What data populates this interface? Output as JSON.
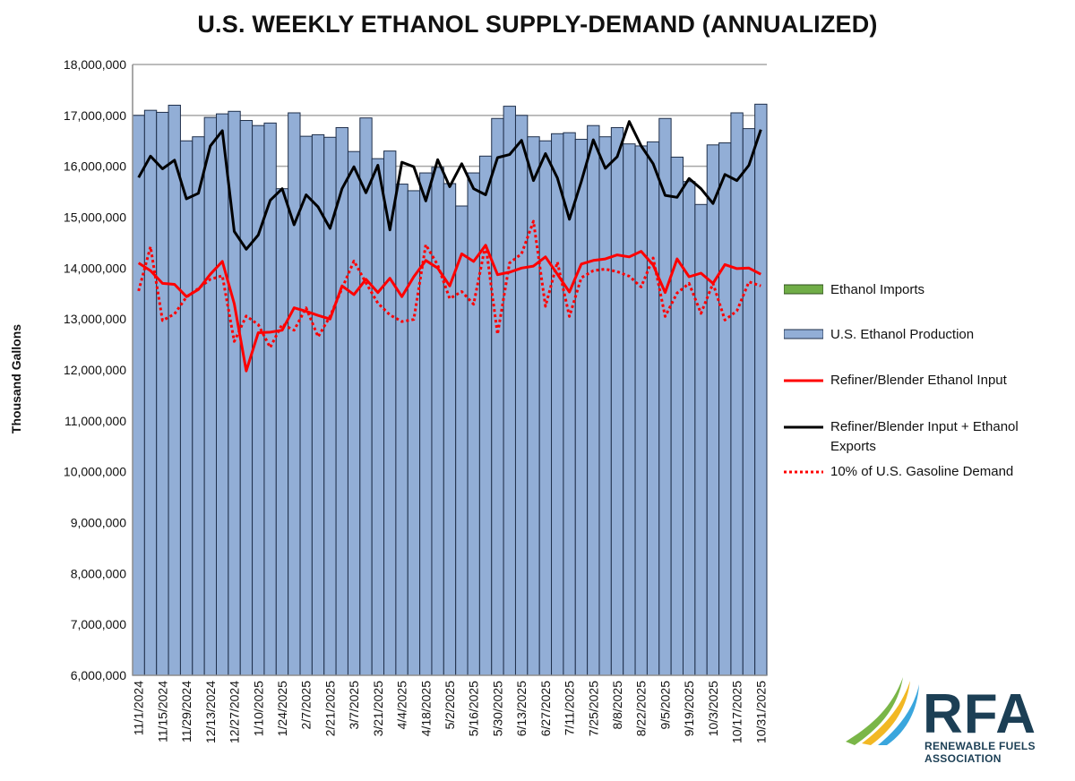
{
  "chart_data": {
    "type": "bar",
    "title": "U.S. WEEKLY ETHANOL SUPPLY-DEMAND (ANNUALIZED)",
    "ylabel": "Thousand Gallons",
    "xlabel": "",
    "ylim": [
      6000000,
      18000000
    ],
    "yticks": [
      "6,000,000",
      "7,000,000",
      "8,000,000",
      "9,000,000",
      "10,000,000",
      "11,000,000",
      "12,000,000",
      "13,000,000",
      "14,000,000",
      "15,000,000",
      "16,000,000",
      "17,000,000",
      "18,000,000"
    ],
    "ytick_values": [
      6000000,
      7000000,
      8000000,
      9000000,
      10000000,
      11000000,
      12000000,
      13000000,
      14000000,
      15000000,
      16000000,
      17000000,
      18000000
    ],
    "xtick_labels": [
      "11/1/2024",
      "11/15/2024",
      "11/29/2024",
      "12/13/2024",
      "12/27/2024",
      "1/10/2025",
      "1/24/2025",
      "2/7/2025",
      "2/21/2025",
      "3/7/2025",
      "3/21/2025",
      "4/4/2025",
      "4/18/2025",
      "5/2/2025",
      "5/16/2025",
      "5/30/2025",
      "6/13/2025",
      "6/27/2025",
      "7/11/2025",
      "7/25/2025",
      "8/8/2025",
      "8/22/2025",
      "9/5/2025",
      "9/19/2025",
      "10/3/2025",
      "10/17/2025",
      "10/31/2025"
    ],
    "grid": true,
    "legend_position": "right",
    "categories": [
      "11/1/2024",
      "11/8/2024",
      "11/15/2024",
      "11/22/2024",
      "11/29/2024",
      "12/6/2024",
      "12/13/2024",
      "12/20/2024",
      "12/27/2024",
      "1/3/2025",
      "1/10/2025",
      "1/17/2025",
      "1/24/2025",
      "1/31/2025",
      "2/7/2025",
      "2/14/2025",
      "2/21/2025",
      "2/28/2025",
      "3/7/2025",
      "3/14/2025",
      "3/21/2025",
      "3/28/2025",
      "4/4/2025",
      "4/11/2025",
      "4/18/2025",
      "4/25/2025",
      "5/2/2025",
      "5/9/2025",
      "5/16/2025",
      "5/23/2025",
      "5/30/2025",
      "6/6/2025",
      "6/13/2025",
      "6/20/2025",
      "6/27/2025",
      "7/4/2025",
      "7/11/2025",
      "7/18/2025",
      "7/25/2025",
      "8/1/2025",
      "8/8/2025",
      "8/15/2025",
      "8/22/2025",
      "8/29/2025",
      "9/5/2025",
      "9/12/2025",
      "9/19/2025",
      "9/26/2025",
      "10/3/2025",
      "10/10/2025",
      "10/17/2025",
      "10/24/2025",
      "10/31/2025"
    ],
    "series": [
      {
        "name": "Ethanol Imports",
        "kind": "bar",
        "color": "#70ad47",
        "values": [
          0,
          0,
          0,
          0,
          0,
          0,
          0,
          0,
          0,
          0,
          0,
          0,
          0,
          0,
          0,
          0,
          0,
          0,
          0,
          0,
          0,
          0,
          0,
          0,
          0,
          0,
          0,
          0,
          0,
          0,
          0,
          0,
          0,
          0,
          0,
          0,
          0,
          0,
          0,
          0,
          0,
          0,
          0,
          0,
          0,
          0,
          0,
          0,
          0,
          0,
          0,
          0,
          0
        ]
      },
      {
        "name": "U.S. Ethanol Production",
        "kind": "bar",
        "color": "#92aed6",
        "values": [
          17000000,
          17100000,
          17060000,
          17200000,
          16500000,
          16580000,
          16960000,
          17030000,
          17080000,
          16900000,
          16800000,
          16850000,
          15560000,
          17050000,
          16590000,
          16620000,
          16570000,
          16760000,
          16290000,
          16950000,
          16150000,
          16300000,
          15650000,
          15520000,
          15870000,
          15980000,
          15660000,
          15220000,
          15870000,
          16200000,
          16940000,
          17180000,
          17000000,
          16580000,
          16500000,
          16640000,
          16660000,
          16530000,
          16800000,
          16580000,
          16760000,
          16440000,
          16400000,
          16480000,
          16940000,
          16180000,
          15700000,
          15250000,
          16420000,
          16460000,
          17050000,
          16740000,
          17220000
        ]
      },
      {
        "name": "Refiner/Blender Ethanol Input",
        "kind": "line",
        "color": "#ff0000",
        "dash": "solid",
        "values": [
          14100000,
          13950000,
          13700000,
          13680000,
          13440000,
          13580000,
          13880000,
          14130000,
          13300000,
          11980000,
          12730000,
          12740000,
          12780000,
          13220000,
          13150000,
          13070000,
          13000000,
          13650000,
          13480000,
          13780000,
          13520000,
          13800000,
          13440000,
          13830000,
          14150000,
          14000000,
          13650000,
          14280000,
          14130000,
          14450000,
          13870000,
          13920000,
          14000000,
          14040000,
          14220000,
          13880000,
          13530000,
          14080000,
          14150000,
          14180000,
          14260000,
          14220000,
          14330000,
          14060000,
          13520000,
          14180000,
          13830000,
          13900000,
          13700000,
          14070000,
          13990000,
          14000000,
          13880000
        ]
      },
      {
        "name": "Refiner/Blender Input + Ethanol Exports",
        "kind": "line",
        "color": "#000000",
        "dash": "solid",
        "values": [
          15780000,
          16200000,
          15950000,
          16120000,
          15360000,
          15470000,
          16400000,
          16700000,
          14720000,
          14370000,
          14650000,
          15330000,
          15560000,
          14850000,
          15440000,
          15200000,
          14780000,
          15560000,
          15990000,
          15480000,
          16020000,
          14750000,
          16080000,
          15990000,
          15320000,
          16130000,
          15600000,
          16050000,
          15560000,
          15440000,
          16170000,
          16230000,
          16510000,
          15720000,
          16250000,
          15770000,
          14960000,
          15700000,
          16520000,
          15960000,
          16190000,
          16880000,
          16400000,
          16050000,
          15430000,
          15390000,
          15760000,
          15560000,
          15270000,
          15840000,
          15720000,
          16020000,
          16720000
        ]
      },
      {
        "name": "10% of U.S. Gasoline Demand",
        "kind": "line",
        "color": "#ff0000",
        "dash": "dotted",
        "values": [
          13550000,
          14420000,
          12970000,
          13100000,
          13430000,
          13600000,
          13780000,
          13850000,
          12560000,
          13060000,
          12890000,
          12440000,
          12900000,
          12780000,
          13220000,
          12650000,
          13050000,
          13600000,
          14140000,
          13710000,
          13310000,
          13080000,
          12950000,
          12990000,
          14460000,
          14060000,
          13400000,
          13540000,
          13290000,
          14470000,
          12700000,
          14100000,
          14280000,
          14920000,
          13250000,
          14120000,
          13050000,
          13810000,
          13950000,
          13980000,
          13930000,
          13840000,
          13630000,
          14200000,
          13050000,
          13510000,
          13700000,
          13110000,
          13700000,
          12980000,
          13160000,
          13730000,
          13650000
        ]
      }
    ]
  },
  "legend": {
    "items": [
      {
        "label": "Ethanol Imports"
      },
      {
        "label": "U.S. Ethanol Production"
      },
      {
        "label": "Refiner/Blender Ethanol Input"
      },
      {
        "label_line1": "Refiner/Blender Input + Ethanol",
        "label_line2": "Exports"
      },
      {
        "label": "10% of U.S. Gasoline Demand"
      }
    ]
  },
  "logo": {
    "text": "RFA",
    "subtitle_line1": "RENEWABLE FUELS",
    "subtitle_line2": "ASSOCIATION",
    "colors": {
      "green": "#7ab648",
      "yellow": "#f2b824",
      "blue": "#3aa6dd",
      "navy": "#1c3f55"
    }
  }
}
